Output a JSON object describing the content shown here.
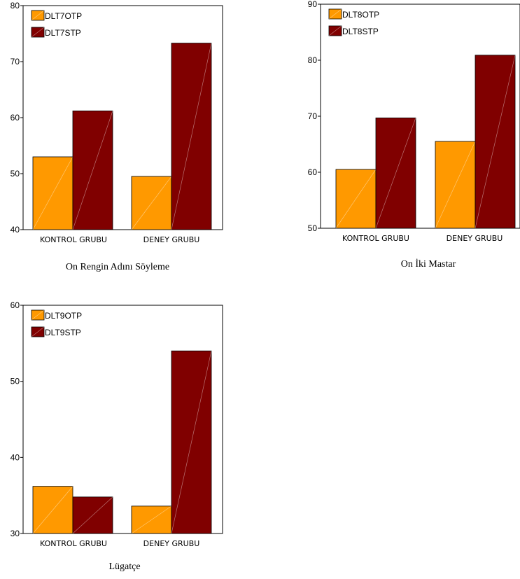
{
  "colors": {
    "pretest": "#FF9900",
    "posttest": "#800000",
    "frame": "#000000",
    "background": "#FFFFFF"
  },
  "chart_data": [
    {
      "type": "bar",
      "title": "On Rengin Adını Söyleme",
      "categories": [
        "KONTROL  GRUBU",
        "DENEY  GRUBU"
      ],
      "series": [
        {
          "name": "DLT7OTP",
          "values": [
            53,
            49.5
          ]
        },
        {
          "name": "DLT7STP",
          "values": [
            61.2,
            73.3
          ]
        }
      ],
      "ylim": [
        40,
        80
      ],
      "yticks": [
        40,
        50,
        60,
        70,
        80
      ],
      "legend": "top-left",
      "grid": false
    },
    {
      "type": "bar",
      "title": "On İki Mastar",
      "categories": [
        "KONTROL  GRUBU",
        "DENEY  GRUBU"
      ],
      "series": [
        {
          "name": "DLT8OTP",
          "values": [
            60.5,
            65.5
          ]
        },
        {
          "name": "DLT8STP",
          "values": [
            69.7,
            80.9
          ]
        }
      ],
      "ylim": [
        50,
        90
      ],
      "yticks": [
        50,
        60,
        70,
        80,
        90
      ],
      "legend": "top-left",
      "grid": false
    },
    {
      "type": "bar",
      "title": "Lügatçe",
      "categories": [
        "KONTROL  GRUBU",
        "DENEY  GRUBU"
      ],
      "series": [
        {
          "name": "DLT9OTP",
          "values": [
            36.2,
            33.6
          ]
        },
        {
          "name": "DLT9STP",
          "values": [
            34.8,
            54
          ]
        }
      ],
      "ylim": [
        30,
        60
      ],
      "yticks": [
        30,
        40,
        50,
        60
      ],
      "legend": "top-left",
      "grid": false
    }
  ]
}
